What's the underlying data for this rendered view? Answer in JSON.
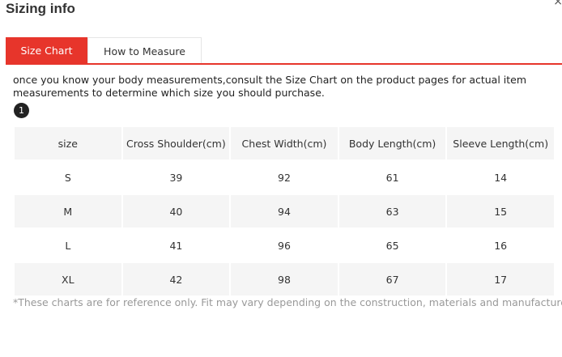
{
  "dialog": {
    "title": "Sizing info",
    "close_label": "×"
  },
  "tabs": [
    {
      "label": "Size Chart",
      "active": true
    },
    {
      "label": "How to Measure",
      "active": false
    }
  ],
  "intro_text": "once you know your body measurements,consult the Size Chart on the product pages for actual item measurements to determine which size you should purchase.",
  "step_badge": "1",
  "table": {
    "headers": [
      "size",
      "Cross Shoulder(cm)",
      "Chest Width(cm)",
      "Body Length(cm)",
      "Sleeve Length(cm)"
    ],
    "rows": [
      [
        "S",
        "39",
        "92",
        "61",
        "14"
      ],
      [
        "M",
        "40",
        "94",
        "63",
        "15"
      ],
      [
        "L",
        "41",
        "96",
        "65",
        "16"
      ],
      [
        "XL",
        "42",
        "98",
        "67",
        "17"
      ]
    ]
  },
  "footnote": "*These charts are for reference only. Fit may vary depending on the construction, materials and manufacturer.",
  "colors": {
    "accent": "#e7352b",
    "row_shade": "#f5f5f5",
    "footnote": "#999999"
  }
}
